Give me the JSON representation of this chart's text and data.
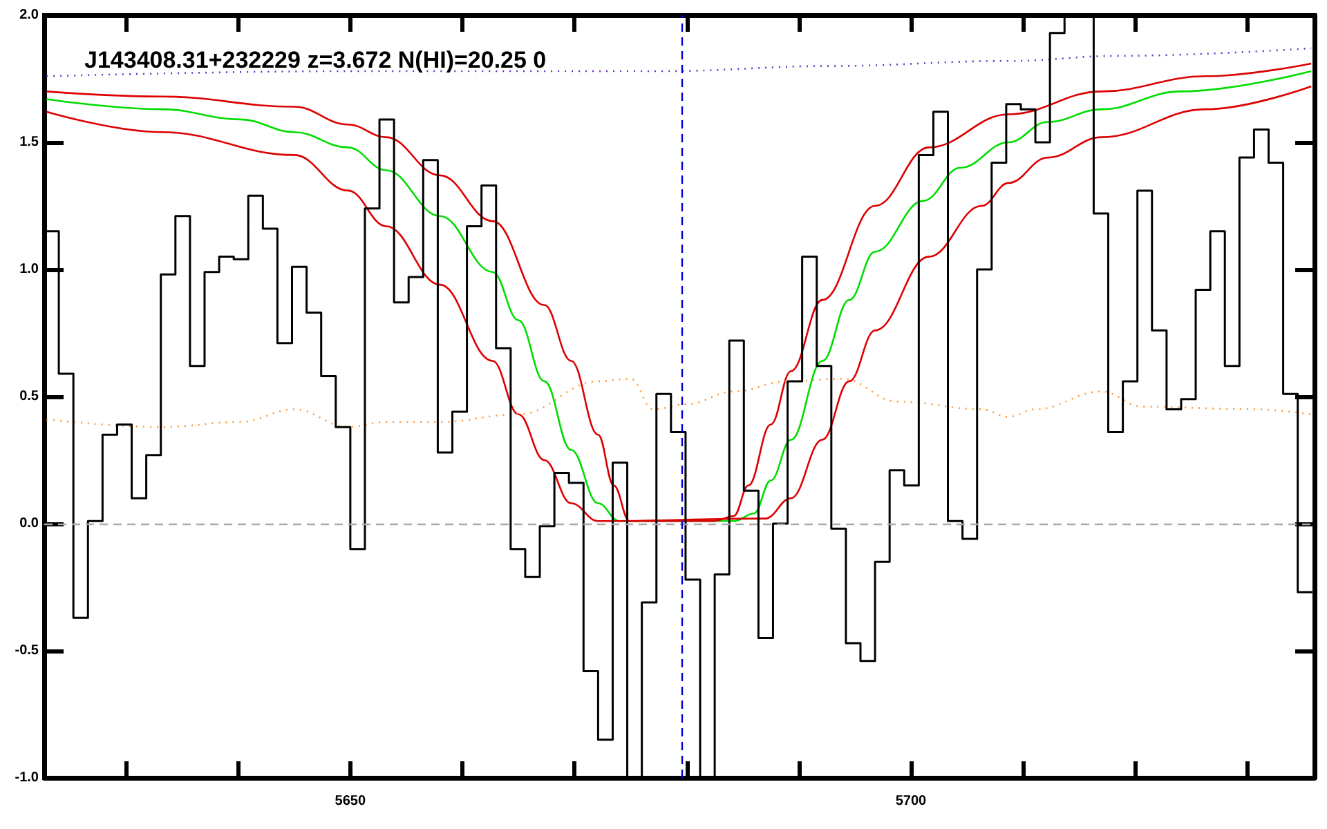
{
  "chart_data": {
    "type": "histogram",
    "title": "J143408.31+232229 z=3.672 N(HI)=20.25 0",
    "color": "#000000",
    "bins": [
      5622.7,
      5624.0,
      5625.3,
      5626.6,
      5627.9,
      5629.2,
      5630.5,
      5631.8,
      5633.1,
      5634.4,
      5635.7,
      5637.0,
      5638.3,
      5639.6,
      5640.9,
      5642.2,
      5643.5,
      5644.8,
      5646.1,
      5647.4,
      5648.7,
      5650.0,
      5651.3,
      5652.6,
      5653.9,
      5655.2,
      5656.5,
      5657.8,
      5659.1,
      5660.4,
      5661.7,
      5663.0,
      5664.3,
      5665.6,
      5666.9,
      5668.2,
      5669.5,
      5670.8,
      5672.1,
      5673.4,
      5674.7,
      5676.0,
      5677.3,
      5678.6,
      5679.9,
      5681.2,
      5682.5,
      5683.8,
      5685.1,
      5686.4,
      5687.7,
      5689.0,
      5690.3,
      5691.6,
      5692.9,
      5694.2,
      5695.5,
      5696.8,
      5698.1,
      5699.4,
      5700.7,
      5702.0,
      5703.3,
      5704.6,
      5705.9,
      5707.2,
      5708.5,
      5709.8,
      5711.1,
      5712.4,
      5713.7,
      5715.0,
      5716.3,
      5717.6,
      5718.9,
      5720.2,
      5721.5,
      5722.8,
      5724.1,
      5725.4,
      5726.7,
      5728.0,
      5729.3,
      5730.6,
      5731.9,
      5733.2,
      5734.5,
      5735.8
    ],
    "values": [
      1.15,
      0.59,
      -0.37,
      0.01,
      0.35,
      0.39,
      0.1,
      0.27,
      0.98,
      1.21,
      0.62,
      0.99,
      1.05,
      1.04,
      1.29,
      1.16,
      0.71,
      1.01,
      0.83,
      0.58,
      0.38,
      -0.1,
      1.24,
      1.59,
      0.87,
      0.97,
      1.43,
      0.28,
      0.44,
      1.17,
      1.33,
      0.69,
      -0.1,
      -0.21,
      -0.01,
      0.2,
      0.16,
      -0.58,
      -0.85,
      0.24,
      -1.0,
      -0.31,
      0.51,
      0.36,
      -0.22,
      -1.0,
      -0.2,
      0.72,
      0.13,
      -0.45,
      0.0,
      0.56,
      1.05,
      0.62,
      -0.02,
      -0.47,
      -0.54,
      -0.15,
      0.21,
      0.15,
      1.45,
      1.62,
      0.01,
      -0.06,
      1.0,
      1.42,
      1.65,
      1.63,
      1.5,
      1.93,
      2.0,
      2.0,
      1.22,
      0.36,
      0.56,
      1.31,
      0.76,
      0.45,
      0.49,
      0.92,
      1.15,
      0.62,
      1.44,
      1.55,
      1.42,
      0.51,
      -0.27
    ],
    "series": [
      {
        "type": "line",
        "color": "#00dd00",
        "x": [
          5622.9,
          5633.2,
          5640.2,
          5645.0,
          5649.8,
          5653.2,
          5658.0,
          5662.7,
          5665.0,
          5667.3,
          5669.7,
          5672.1,
          5674.0,
          5684.2,
          5686.0,
          5687.5,
          5689.3,
          5692.1,
          5694.5,
          5696.8,
          5701.1,
          5704.4,
          5708.7,
          5712.2,
          5717.0,
          5724.0,
          5735.7
        ],
        "values": [
          1.67,
          1.63,
          1.59,
          1.54,
          1.48,
          1.39,
          1.21,
          0.99,
          0.8,
          0.56,
          0.29,
          0.08,
          0.01,
          0.01,
          0.04,
          0.17,
          0.33,
          0.64,
          0.88,
          1.07,
          1.27,
          1.4,
          1.5,
          1.58,
          1.63,
          1.7,
          1.78
        ]
      },
      {
        "type": "line",
        "color": "#dd0000",
        "x": [
          5622.9,
          5633.2,
          5645.0,
          5649.8,
          5653.2,
          5658.0,
          5662.7,
          5667.3,
          5669.7,
          5672.1,
          5673.5,
          5674.9,
          5682.4,
          5684.2,
          5685.5,
          5687.5,
          5689.3,
          5692.1,
          5696.8,
          5701.6,
          5708.7,
          5717.0,
          5726.3,
          5735.7
        ],
        "values": [
          1.7,
          1.68,
          1.64,
          1.57,
          1.52,
          1.37,
          1.19,
          0.86,
          0.64,
          0.35,
          0.15,
          0.01,
          0.01,
          0.03,
          0.15,
          0.39,
          0.6,
          0.88,
          1.25,
          1.48,
          1.61,
          1.7,
          1.76,
          1.81
        ]
      },
      {
        "type": "line",
        "color": "#dd0000",
        "x": [
          5622.9,
          5633.2,
          5645.0,
          5649.8,
          5653.2,
          5658.0,
          5662.7,
          5665.0,
          5667.3,
          5669.7,
          5672.1,
          5687.0,
          5689.3,
          5692.1,
          5694.5,
          5696.8,
          5701.6,
          5706.3,
          5708.7,
          5712.2,
          5717.0,
          5726.3,
          5735.7
        ],
        "values": [
          1.62,
          1.54,
          1.45,
          1.31,
          1.17,
          0.94,
          0.64,
          0.43,
          0.25,
          0.08,
          0.01,
          0.02,
          0.1,
          0.33,
          0.56,
          0.76,
          1.05,
          1.25,
          1.34,
          1.44,
          1.52,
          1.63,
          1.72
        ]
      },
      {
        "type": "line",
        "color": "#ff9933",
        "line_style": "dotted",
        "x": [
          5622.9,
          5633.2,
          5640.2,
          5645.0,
          5649.8,
          5653.2,
          5658.0,
          5665.0,
          5672.1,
          5675.0,
          5677.0,
          5680.0,
          5684.2,
          5689.0,
          5693.9,
          5698.8,
          5706.3,
          5708.7,
          5711.1,
          5717.0,
          5720.7,
          5730.5,
          5735.7
        ],
        "values": [
          0.41,
          0.38,
          0.4,
          0.45,
          0.38,
          0.4,
          0.4,
          0.43,
          0.56,
          0.57,
          0.45,
          0.47,
          0.52,
          0.56,
          0.57,
          0.48,
          0.45,
          0.42,
          0.45,
          0.52,
          0.46,
          0.45,
          0.43
        ]
      },
      {
        "type": "line",
        "color": "#6633cc",
        "line_style": "dotted",
        "x": [
          5622.9,
          5650.0,
          5678.0,
          5692.7,
          5708.7,
          5718.5,
          5735.7
        ],
        "values": [
          1.76,
          1.78,
          1.78,
          1.8,
          1.82,
          1.84,
          1.87
        ]
      }
    ],
    "ref_lines": [
      {
        "axis": "y",
        "value": 0,
        "color": "#aaaaaa",
        "line_style": "dashed"
      },
      {
        "axis": "x",
        "value": 5679.6,
        "color": "#0000dd",
        "line_style": "dashed"
      }
    ],
    "xlim": [
      5622.7,
      5736.0
    ],
    "ylim": [
      -1.0,
      2.0
    ],
    "xticks": [
      {
        "value": 5630,
        "label": null
      },
      {
        "value": 5640,
        "label": null
      },
      5650,
      {
        "value": 5660,
        "label": null
      },
      {
        "value": 5670,
        "label": null
      },
      {
        "value": 5680,
        "label": null
      },
      {
        "value": 5690,
        "label": null
      },
      5700,
      {
        "value": 5710,
        "label": null
      },
      {
        "value": 5720,
        "label": null
      },
      {
        "value": 5730,
        "label": null
      }
    ],
    "yticks": [
      {
        "value": -1.0,
        "label": "-1.0"
      },
      {
        "value": -0.5,
        "label": "-0.5"
      },
      {
        "value": 0,
        "label": "0.0"
      },
      {
        "value": 0.5,
        "label": "0.5"
      },
      {
        "value": 1.0,
        "label": "1.0"
      },
      {
        "value": 1.5,
        "label": "1.5"
      },
      {
        "value": 2.0,
        "label": "2.0"
      }
    ],
    "grid": false,
    "marker": "none"
  }
}
